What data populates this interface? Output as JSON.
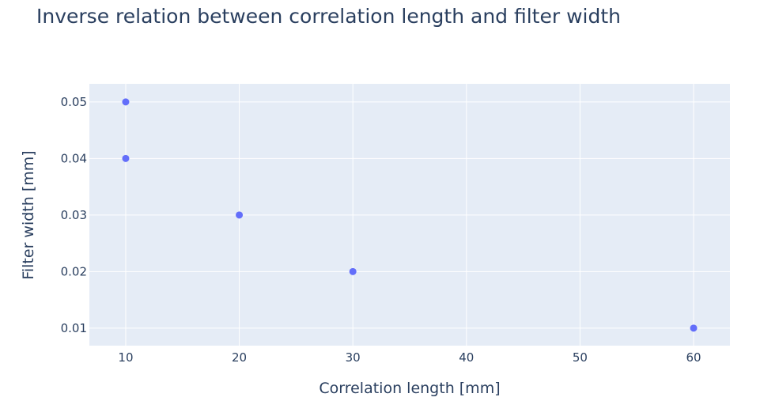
{
  "chart_data": {
    "type": "scatter",
    "title": "Inverse relation between correlation length and filter width",
    "xlabel": "Correlation length [mm]",
    "ylabel": "Filter width [mm]",
    "x": [
      10,
      10,
      20,
      30,
      60
    ],
    "y": [
      0.05,
      0.04,
      0.03,
      0.02,
      0.01
    ],
    "xticks": [
      10,
      20,
      30,
      40,
      50,
      60
    ],
    "yticks": [
      0.01,
      0.02,
      0.03,
      0.04,
      0.05
    ],
    "xtick_labels": [
      "10",
      "20",
      "30",
      "40",
      "50",
      "60"
    ],
    "ytick_labels": [
      "0.01",
      "0.02",
      "0.03",
      "0.04",
      "0.05"
    ],
    "xlim": [
      6.8,
      63.2
    ],
    "ylim": [
      0.0069,
      0.0532
    ],
    "grid": true,
    "colors": {
      "plot_bg": "#e5ecf6",
      "marker": "#636efa",
      "grid": "#ffffff",
      "text": "#2a3f5f"
    }
  }
}
